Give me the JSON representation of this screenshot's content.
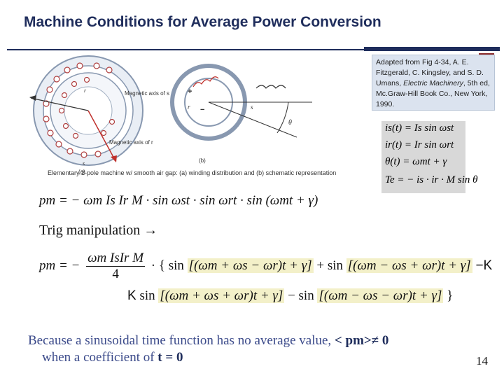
{
  "slide": {
    "title": "Machine Conditions for Average Power Conversion",
    "page_number": "14"
  },
  "citation": {
    "text_pre": "Adapted from Fig 4-34, A. E. Fitzgerald, C. Kingsley, and S. D. Umans, ",
    "book": "Electric Machinery",
    "text_post": ", 5th ed, Mc.Graw-Hill Book Co., New York, 1990."
  },
  "figure": {
    "caption": "Elementary 2-pole machine w/ smooth air gap: (a) winding distribution and (b) schematic representation",
    "label_a": "(a)",
    "label_b": "(b)",
    "magnetic_axis_s": "Magnetic axis of s",
    "magnetic_axis_r": "Magnetic axis of r",
    "s_label": "s",
    "r_label": "r",
    "theta_label": "θ"
  },
  "equations": {
    "is": "is(t) = Is sin ωst",
    "ir": "ir(t) = Ir sin ωrt",
    "theta": "θ(t) = ωmt + γ",
    "te": "Te = − is · ir · M sin θ",
    "pm": "pm = − ωm Is Ir M · sin ωst · sin ωrt · sin (ωmt + γ)"
  },
  "trig_label": "Trig manipulation →",
  "expansion": {
    "lhs": "pm = −",
    "numerator": "ωm IsIr M",
    "denominator": "4",
    "term1": "[(ωm + ωs − ωr)t + γ]",
    "term2": "[(ωm − ωs + ωr)t + γ]",
    "term3": "[(ωm + ωs + ωr)t + γ]",
    "term4": "[(ωm − ωs − ωr)t + γ]",
    "sin": "sin",
    "plus": "+",
    "minus": "−",
    "k": "K",
    "dash_k": "−K",
    "brace_open": "{",
    "brace_close": "}",
    "dot": "·"
  },
  "conclusion": {
    "line1_pre": "Because a sinusoidal time function has no average value, ",
    "line1_math": "< pm>≠ 0",
    "line2_pre": "when a coefficient of ",
    "line2_math": "t = 0"
  }
}
